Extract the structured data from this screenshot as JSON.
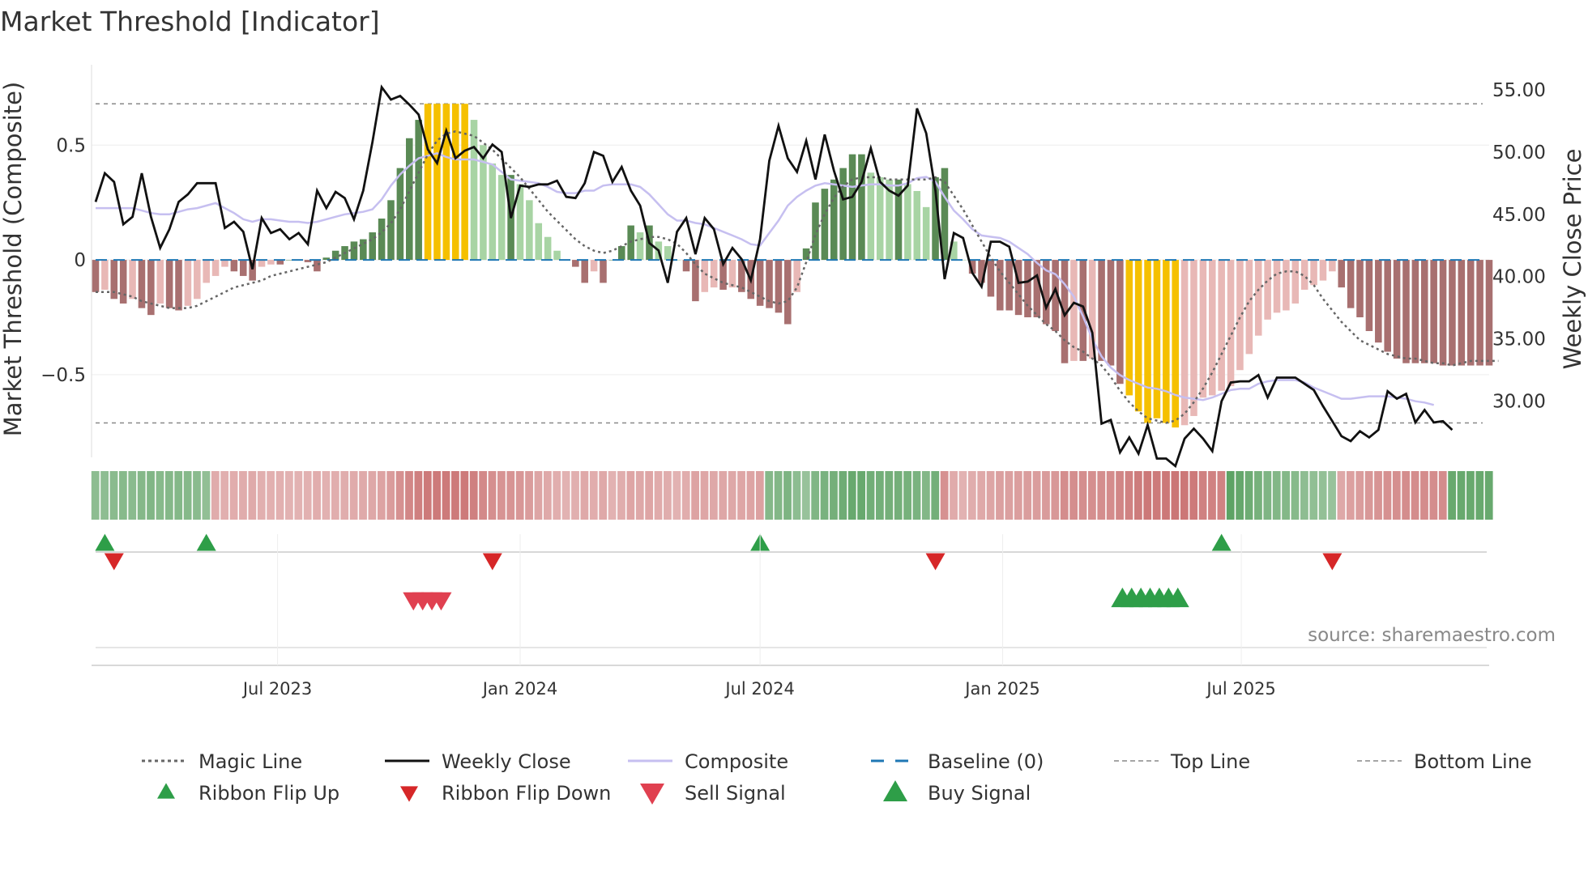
{
  "title": "Market Threshold [Indicator]",
  "source": "source: sharemaestro.com",
  "chart_data": {
    "type": "bar",
    "title": "Market Threshold [Indicator]",
    "x_start": "2023-02-13",
    "x_step_days": 7,
    "x_ticks": [
      "Jul 2023",
      "Jan 2024",
      "Jul 2024",
      "Jan 2025",
      "Jul 2025"
    ],
    "x_tick_dates": [
      "2023-07-01",
      "2024-01-01",
      "2024-07-01",
      "2025-01-01",
      "2025-07-01"
    ],
    "left_axis": {
      "label": "Market Threshold (Composite)",
      "ticks": [
        "0.5",
        "0",
        "−0.5"
      ],
      "tick_values": [
        0.5,
        0,
        -0.5
      ],
      "ylim": [
        -0.86,
        0.85
      ]
    },
    "right_axis": {
      "label": "Weekly Close Price",
      "ticks": [
        "55.00",
        "50.00",
        "45.00",
        "40.00",
        "35.00",
        "30.00"
      ],
      "tick_values": [
        55,
        50,
        45,
        40,
        35,
        30
      ],
      "ylim": [
        25.5,
        57
      ]
    },
    "top_line": 0.68,
    "bottom_line": -0.71,
    "baseline": 0,
    "series": [
      {
        "name": "Composite (histogram)",
        "values": [
          -0.14,
          -0.13,
          -0.17,
          -0.19,
          -0.17,
          -0.21,
          -0.24,
          -0.19,
          -0.21,
          -0.22,
          -0.2,
          -0.17,
          -0.1,
          -0.07,
          -0.03,
          -0.05,
          -0.07,
          -0.09,
          -0.03,
          -0.02,
          -0.02,
          0.0,
          0.0,
          -0.01,
          -0.05,
          0.01,
          0.04,
          0.06,
          0.08,
          0.09,
          0.12,
          0.18,
          0.26,
          0.4,
          0.53,
          0.61,
          0.68,
          0.68,
          0.68,
          0.68,
          0.68,
          0.61,
          0.5,
          0.42,
          0.37,
          0.37,
          0.33,
          0.26,
          0.16,
          0.1,
          0.04,
          0.0,
          -0.03,
          -0.1,
          -0.05,
          -0.1,
          0.0,
          0.06,
          0.15,
          0.12,
          0.15,
          0.08,
          0.06,
          0.0,
          -0.05,
          -0.18,
          -0.14,
          -0.12,
          -0.13,
          -0.12,
          -0.14,
          -0.17,
          -0.2,
          -0.21,
          -0.23,
          -0.28,
          -0.14,
          0.05,
          0.25,
          0.31,
          0.35,
          0.4,
          0.46,
          0.46,
          0.38,
          0.36,
          0.35,
          0.35,
          0.33,
          0.3,
          0.23,
          0.36,
          0.4,
          0.08,
          0.0,
          -0.06,
          -0.1,
          -0.16,
          -0.22,
          -0.22,
          -0.24,
          -0.25,
          -0.25,
          -0.28,
          -0.31,
          -0.45,
          -0.44,
          -0.44,
          -0.43,
          -0.44,
          -0.46,
          -0.54,
          -0.59,
          -0.66,
          -0.71,
          -0.69,
          -0.71,
          -0.73,
          -0.72,
          -0.68,
          -0.6,
          -0.59,
          -0.57,
          -0.55,
          -0.48,
          -0.41,
          -0.33,
          -0.26,
          -0.23,
          -0.22,
          -0.19,
          -0.13,
          -0.11,
          -0.09,
          -0.05,
          -0.12,
          -0.21,
          -0.25,
          -0.31,
          -0.36,
          -0.4,
          -0.43,
          -0.45,
          -0.45,
          -0.45,
          -0.45,
          -0.46,
          -0.46,
          -0.46,
          -0.46,
          -0.46,
          -0.46
        ]
      },
      {
        "name": "Weekly Close",
        "values": [
          46.0,
          48.3,
          47.6,
          44.2,
          44.8,
          48.3,
          44.8,
          42.3,
          43.8,
          46.0,
          46.6,
          47.5,
          47.5,
          47.5,
          43.9,
          44.4,
          43.6,
          40.6,
          44.7,
          43.5,
          43.8,
          43.0,
          43.5,
          42.6,
          46.9,
          45.5,
          46.8,
          46.3,
          44.6,
          46.9,
          50.8,
          55.2,
          54.2,
          54.5,
          53.8,
          53.0,
          50.2,
          49.1,
          51.7,
          49.5,
          50.1,
          50.4,
          49.5,
          50.6,
          50.0,
          44.7,
          47.3,
          47.2,
          47.4,
          47.4,
          47.7,
          46.4,
          46.3,
          47.5,
          50.0,
          49.7,
          47.6,
          48.8,
          46.9,
          45.7,
          42.7,
          42.1,
          39.5,
          43.6,
          44.7,
          41.8,
          44.7,
          43.8,
          41.0,
          42.3,
          41.4,
          39.7,
          43.0,
          49.3,
          52.1,
          49.5,
          48.4,
          50.9,
          47.8,
          51.4,
          48.5,
          46.2,
          46.4,
          47.6,
          50.3,
          47.6,
          46.9,
          46.5,
          47.3,
          53.5,
          51.5,
          46.9,
          39.8,
          43.5,
          43.1,
          40.3,
          39.2,
          42.8,
          42.8,
          42.4,
          39.5,
          39.6,
          40.1,
          37.5,
          39.0,
          36.9,
          37.9,
          37.6,
          35.5,
          28.2,
          28.5,
          25.9,
          27.1,
          25.8,
          28.1,
          25.4,
          25.4,
          24.8,
          27.0,
          27.8,
          27.0,
          26.0,
          30.0,
          31.5,
          31.6,
          31.6,
          32.1,
          30.3,
          31.9,
          31.9,
          31.9,
          31.4,
          30.9,
          29.6,
          28.4,
          27.2,
          26.8,
          27.6,
          27.1,
          27.7,
          30.8,
          30.2,
          30.6,
          28.3,
          29.3,
          28.3,
          28.4,
          27.7
        ]
      },
      {
        "name": "Composite",
        "values": [
          45.5,
          45.5,
          45.5,
          45.5,
          45.5,
          45.3,
          45.1,
          45.0,
          45.0,
          45.2,
          45.4,
          45.5,
          45.7,
          45.9,
          45.5,
          45.1,
          44.6,
          44.4,
          44.6,
          44.6,
          44.5,
          44.4,
          44.4,
          44.3,
          44.4,
          44.6,
          44.8,
          45.0,
          45.1,
          45.2,
          45.4,
          46.2,
          47.3,
          48.2,
          48.9,
          49.5,
          49.7,
          49.9,
          49.6,
          49.4,
          49.4,
          49.4,
          49.2,
          49.0,
          48.4,
          47.8,
          47.7,
          47.6,
          47.5,
          47.2,
          46.8,
          46.7,
          46.7,
          46.9,
          46.9,
          47.3,
          47.4,
          47.4,
          47.4,
          47.2,
          46.6,
          45.8,
          45.0,
          44.5,
          44.5,
          44.3,
          44.2,
          43.9,
          43.6,
          43.3,
          43.0,
          42.6,
          42.5,
          43.5,
          44.5,
          45.7,
          46.4,
          46.9,
          47.3,
          47.5,
          47.4,
          47.3,
          47.2,
          47.3,
          47.4,
          47.4,
          47.3,
          47.3,
          47.5,
          47.9,
          48.0,
          47.6,
          46.4,
          45.3,
          44.6,
          43.8,
          43.3,
          43.2,
          43.1,
          42.8,
          42.3,
          41.8,
          41.1,
          40.5,
          40.2,
          39.4,
          38.4,
          36.8,
          35.0,
          33.6,
          32.7,
          32.1,
          31.7,
          31.4,
          31.1,
          31.0,
          30.8,
          30.5,
          30.3,
          30.2,
          30.1,
          30.3,
          30.6,
          30.9,
          31.0,
          31.0,
          31.4,
          31.6,
          31.7,
          31.7,
          31.7,
          31.5,
          31.1,
          30.8,
          30.5,
          30.2,
          30.2,
          30.3,
          30.4,
          30.4,
          30.4,
          30.3,
          30.2,
          30.0,
          29.9,
          29.7
        ]
      },
      {
        "name": "Magic Line",
        "values": [
          -0.14,
          -0.14,
          -0.14,
          -0.15,
          -0.16,
          -0.18,
          -0.19,
          -0.2,
          -0.21,
          -0.21,
          -0.21,
          -0.2,
          -0.18,
          -0.16,
          -0.14,
          -0.12,
          -0.11,
          -0.1,
          -0.09,
          -0.07,
          -0.06,
          -0.05,
          -0.04,
          -0.03,
          -0.02,
          -0.01,
          0.01,
          0.03,
          0.05,
          0.07,
          0.09,
          0.12,
          0.16,
          0.22,
          0.3,
          0.38,
          0.46,
          0.52,
          0.55,
          0.56,
          0.55,
          0.54,
          0.51,
          0.48,
          0.44,
          0.4,
          0.36,
          0.31,
          0.26,
          0.21,
          0.17,
          0.13,
          0.09,
          0.06,
          0.04,
          0.03,
          0.04,
          0.06,
          0.08,
          0.09,
          0.1,
          0.1,
          0.09,
          0.07,
          0.03,
          -0.02,
          -0.06,
          -0.08,
          -0.1,
          -0.11,
          -0.12,
          -0.14,
          -0.16,
          -0.18,
          -0.19,
          -0.18,
          -0.12,
          -0.01,
          0.11,
          0.2,
          0.27,
          0.32,
          0.35,
          0.36,
          0.36,
          0.36,
          0.35,
          0.35,
          0.35,
          0.35,
          0.35,
          0.36,
          0.34,
          0.28,
          0.22,
          0.15,
          0.08,
          0.01,
          -0.05,
          -0.1,
          -0.15,
          -0.2,
          -0.24,
          -0.28,
          -0.31,
          -0.35,
          -0.38,
          -0.4,
          -0.43,
          -0.46,
          -0.51,
          -0.57,
          -0.62,
          -0.66,
          -0.69,
          -0.7,
          -0.71,
          -0.7,
          -0.67,
          -0.62,
          -0.56,
          -0.49,
          -0.41,
          -0.33,
          -0.25,
          -0.18,
          -0.13,
          -0.09,
          -0.06,
          -0.05,
          -0.05,
          -0.07,
          -0.11,
          -0.17,
          -0.22,
          -0.27,
          -0.31,
          -0.35,
          -0.37,
          -0.39,
          -0.41,
          -0.42,
          -0.43,
          -0.43,
          -0.44,
          -0.45,
          -0.45,
          -0.46,
          -0.45,
          -0.44,
          -0.44,
          -0.44,
          -0.44
        ]
      },
      {
        "name": "Ribbon Flip Up",
        "indices": [
          1,
          12,
          72,
          122
        ]
      },
      {
        "name": "Ribbon Flip Down",
        "indices": [
          2,
          43,
          91,
          134
        ]
      },
      {
        "name": "Sell Signal",
        "indices": [
          34,
          35,
          36,
          37
        ]
      },
      {
        "name": "Buy Signal",
        "indices": [
          111,
          112,
          113,
          114,
          115,
          116,
          117
        ]
      }
    ],
    "ribbon": {
      "name": "Ribbon",
      "sign": [
        "+",
        "+",
        "-",
        "-",
        "+",
        "-",
        "+",
        "-",
        "+"
      ],
      "segment_ends": [
        1,
        12,
        43,
        72,
        91,
        122,
        134,
        146
      ]
    },
    "legend": [
      {
        "label": "Magic Line",
        "style": "dotted",
        "color": "#666666"
      },
      {
        "label": "Weekly Close",
        "style": "solid",
        "color": "#111111"
      },
      {
        "label": "Composite",
        "style": "solid",
        "color": "#c6bff0"
      },
      {
        "label": "Baseline (0)",
        "style": "dashed",
        "color": "#1f77b4"
      },
      {
        "label": "Top Line",
        "style": "dashed-thin",
        "color": "#888888"
      },
      {
        "label": "Bottom Line",
        "style": "dashed-thin",
        "color": "#888888"
      },
      {
        "label": "Ribbon Flip Up",
        "style": "triangle-up",
        "color": "#2e9e48"
      },
      {
        "label": "Ribbon Flip Down",
        "style": "triangle-down",
        "color": "#d62728"
      },
      {
        "label": "Sell Signal",
        "style": "triangle-down-large",
        "color": "#e04050"
      },
      {
        "label": "Buy Signal",
        "style": "triangle-up-large",
        "color": "#2e9e48"
      }
    ],
    "legend_placement": "bottom"
  },
  "colors": {
    "pos_strong": "#5a8a55",
    "pos_light": "#a8d4a4",
    "neg_strong": "#a87070",
    "neg_light": "#e8b8b6",
    "extreme": "#f5c000",
    "flip_up": "#2e9e48",
    "flip_down": "#d62728",
    "sell": "#e04050",
    "buy": "#2e9e48"
  }
}
